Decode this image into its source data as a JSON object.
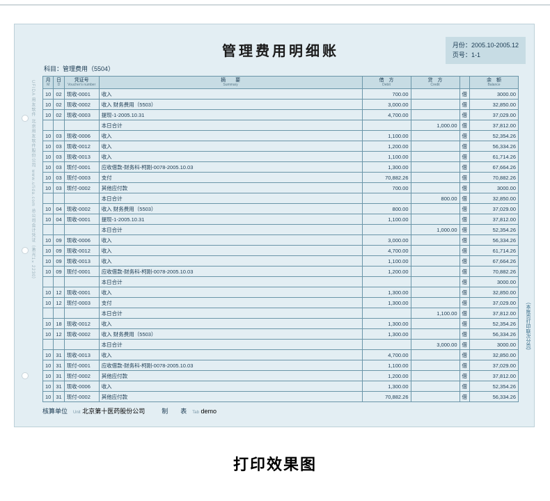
{
  "caption": "打印效果图",
  "title": "管理费用明细账",
  "meta": {
    "month_label": "月份：",
    "month_value": "2005.10-2005.12",
    "page_label": "页号：",
    "page_value": "1-1"
  },
  "subject": {
    "label": "科目：",
    "value": "管理费用（5504）"
  },
  "side_left": "UFIDA 用友软件   北京用友软件股份公司   www.ufida.com   总公司会计凭证（激光1×2230）",
  "side_right": "(本账页打印联次分页)",
  "columns": [
    {
      "zh": "月",
      "en": "M"
    },
    {
      "zh": "日",
      "en": "D"
    },
    {
      "zh": "凭证号",
      "en": "Voucher's number"
    },
    {
      "zh": "摘　　要",
      "en": "Summary"
    },
    {
      "zh": "借　方",
      "en": "Debit"
    },
    {
      "zh": "贷　方",
      "en": "Credit"
    },
    {
      "zh": "",
      "en": ""
    },
    {
      "zh": "余　额",
      "en": "Balance"
    }
  ],
  "rows": [
    {
      "m": "10",
      "d": "02",
      "v": "现收-0001",
      "s": "收入",
      "debit": "700.00",
      "credit": "",
      "dc": "借",
      "bal": "3000.00",
      "tt": true
    },
    {
      "m": "10",
      "d": "02",
      "v": "现收-0002",
      "s": "收入 财务费用（5503）",
      "debit": "3,000.00",
      "credit": "",
      "dc": "借",
      "bal": "32,850.00"
    },
    {
      "m": "10",
      "d": "02",
      "v": "现收-0003",
      "s": "提现-1-2005.10.31",
      "debit": "4,700.00",
      "credit": "",
      "dc": "借",
      "bal": "37,029.00"
    },
    {
      "m": "",
      "d": "",
      "v": "",
      "s": "本日合计",
      "debit": "",
      "credit": "1,000.00",
      "dc": "借",
      "bal": "37,812.00"
    },
    {
      "m": "10",
      "d": "03",
      "v": "现收-0006",
      "s": "收入",
      "debit": "1,100.00",
      "credit": "",
      "dc": "借",
      "bal": "52,354.26",
      "tt": true
    },
    {
      "m": "10",
      "d": "03",
      "v": "现收-0012",
      "s": "收入",
      "debit": "1,200.00",
      "credit": "",
      "dc": "借",
      "bal": "56,334.26"
    },
    {
      "m": "10",
      "d": "03",
      "v": "现收-0013",
      "s": "收入",
      "debit": "1,100.00",
      "credit": "",
      "dc": "借",
      "bal": "61,714.26"
    },
    {
      "m": "10",
      "d": "03",
      "v": "现付-0001",
      "s": "应收借款-财务科-柯刚-0078-2005.10.03",
      "debit": "1,300.00",
      "credit": "",
      "dc": "借",
      "bal": "67,664.26"
    },
    {
      "m": "10",
      "d": "03",
      "v": "现付-0003",
      "s": "支付",
      "debit": "70,882.26",
      "credit": "",
      "dc": "借",
      "bal": "70,882.26"
    },
    {
      "m": "10",
      "d": "03",
      "v": "现付-0002",
      "s": "其他应付款",
      "debit": "700.00",
      "credit": "",
      "dc": "借",
      "bal": "3000.00"
    },
    {
      "m": "",
      "d": "",
      "v": "",
      "s": "本日合计",
      "debit": "",
      "credit": "800.00",
      "dc": "借",
      "bal": "32,850.00"
    },
    {
      "m": "10",
      "d": "04",
      "v": "现收-0002",
      "s": "收入 财务费用（5503）",
      "debit": "800.00",
      "credit": "",
      "dc": "借",
      "bal": "37,029.00",
      "tt": true
    },
    {
      "m": "10",
      "d": "04",
      "v": "现收-0001",
      "s": "提现-1-2005.10.31",
      "debit": "1,100.00",
      "credit": "",
      "dc": "借",
      "bal": "37,812.00"
    },
    {
      "m": "",
      "d": "",
      "v": "",
      "s": "本日合计",
      "debit": "",
      "credit": "1,000.00",
      "dc": "借",
      "bal": "52,354.26"
    },
    {
      "m": "10",
      "d": "09",
      "v": "现收-0006",
      "s": "收入",
      "debit": "3,000.00",
      "credit": "",
      "dc": "借",
      "bal": "56,334.26",
      "tt": true
    },
    {
      "m": "10",
      "d": "09",
      "v": "现收-0012",
      "s": "收入",
      "debit": "4,700.00",
      "credit": "",
      "dc": "借",
      "bal": "61,714.26"
    },
    {
      "m": "10",
      "d": "09",
      "v": "现收-0013",
      "s": "收入",
      "debit": "1,100.00",
      "credit": "",
      "dc": "借",
      "bal": "67,664.26"
    },
    {
      "m": "10",
      "d": "09",
      "v": "现付-0001",
      "s": "应收借款-财务科-柯刚-0078-2005.10.03",
      "debit": "1,200.00",
      "credit": "",
      "dc": "借",
      "bal": "70,882.26"
    },
    {
      "m": "",
      "d": "",
      "v": "",
      "s": "本日合计",
      "debit": "",
      "credit": "",
      "dc": "借",
      "bal": "3000.00"
    },
    {
      "m": "10",
      "d": "12",
      "v": "现收-0001",
      "s": "收入",
      "debit": "1,300.00",
      "credit": "",
      "dc": "借",
      "bal": "32,850.00",
      "tt": true
    },
    {
      "m": "10",
      "d": "12",
      "v": "现付-0003",
      "s": "支付",
      "debit": "1,300.00",
      "credit": "",
      "dc": "借",
      "bal": "37,029.00"
    },
    {
      "m": "",
      "d": "",
      "v": "",
      "s": "本日合计",
      "debit": "",
      "credit": "1,100.00",
      "dc": "借",
      "bal": "37,812.00"
    },
    {
      "m": "10",
      "d": "18",
      "v": "现收-0012",
      "s": "收入",
      "debit": "1,300.00",
      "credit": "",
      "dc": "借",
      "bal": "52,354.26",
      "tt": true
    },
    {
      "m": "10",
      "d": "12",
      "v": "现收-0002",
      "s": "收入 财务费用（5503）",
      "debit": "1,300.00",
      "credit": "",
      "dc": "借",
      "bal": "56,334.26"
    },
    {
      "m": "",
      "d": "",
      "v": "",
      "s": "本日合计",
      "debit": "",
      "credit": "3,000.00",
      "dc": "借",
      "bal": "3000.00"
    },
    {
      "m": "10",
      "d": "31",
      "v": "现收-0013",
      "s": "收入",
      "debit": "4,700.00",
      "credit": "",
      "dc": "借",
      "bal": "32,850.00",
      "tt": true
    },
    {
      "m": "10",
      "d": "31",
      "v": "现付-0001",
      "s": "应收借款-财务科-柯刚-0078-2005.10.03",
      "debit": "1,100.00",
      "credit": "",
      "dc": "借",
      "bal": "37,029.00"
    },
    {
      "m": "10",
      "d": "31",
      "v": "现付-0002",
      "s": "其他应付款",
      "debit": "1,200.00",
      "credit": "",
      "dc": "借",
      "bal": "37,812.00"
    },
    {
      "m": "10",
      "d": "31",
      "v": "现收-0006",
      "s": "收入",
      "debit": "1,300.00",
      "credit": "",
      "dc": "借",
      "bal": "52,354.26"
    },
    {
      "m": "10",
      "d": "31",
      "v": "现付-0002",
      "s": "其他应付款",
      "debit": "70,882.26",
      "credit": "",
      "dc": "借",
      "bal": "56,334.26"
    }
  ],
  "footer": {
    "unit_label": "核算单位",
    "unit_sub": "Unit",
    "unit_value": "北京第十医药股份公司",
    "maker_label": "制　　表",
    "maker_sub": "Tab",
    "maker_value": "demo"
  }
}
